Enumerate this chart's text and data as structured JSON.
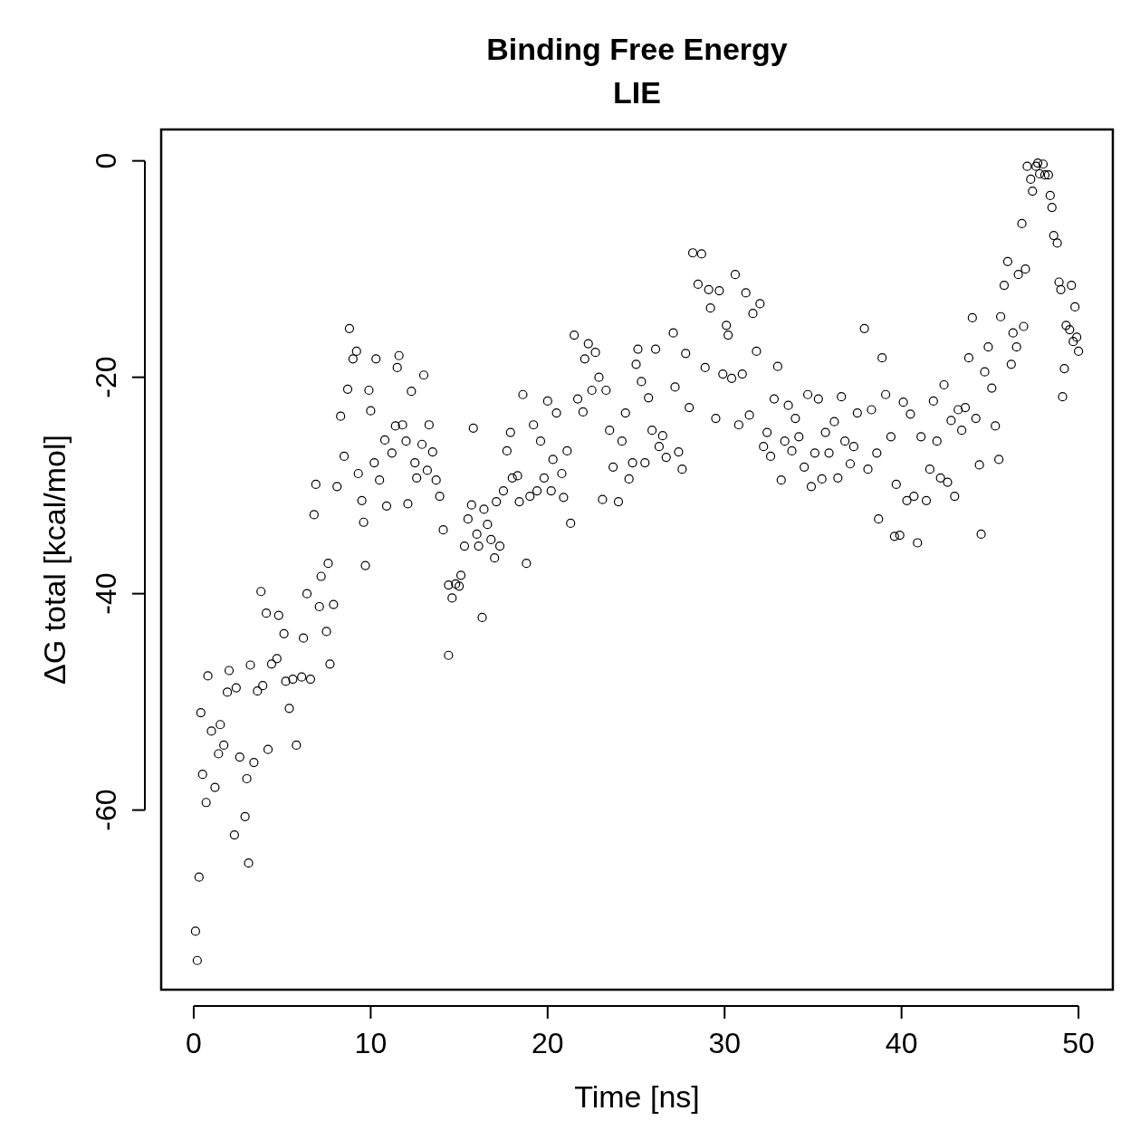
{
  "chart_data": {
    "type": "scatter",
    "title": "Binding Free Energy",
    "subtitle": "LIE",
    "xlabel": "Time [ns]",
    "ylabel": "ΔG total [kcal/mol]",
    "color": "#000000",
    "marker": "circle",
    "xlim": [
      -1.84,
      51.94
    ],
    "ylim": [
      -76.6,
      2.9
    ],
    "xticks": [
      0,
      10,
      20,
      30,
      40,
      50
    ],
    "yticks": [
      0,
      -20,
      -40,
      -60
    ],
    "x": [
      0.1,
      0.2,
      0.3,
      0.4,
      0.5,
      0.7,
      0.8,
      1.0,
      1.2,
      1.4,
      1.5,
      1.7,
      1.9,
      2.0,
      2.3,
      2.4,
      2.6,
      2.9,
      3.0,
      3.1,
      3.2,
      3.4,
      3.6,
      3.8,
      3.9,
      4.1,
      4.2,
      4.4,
      4.7,
      4.8,
      5.1,
      5.2,
      5.4,
      5.6,
      5.8,
      6.1,
      6.2,
      6.4,
      6.6,
      6.8,
      6.9,
      7.1,
      7.2,
      7.5,
      7.6,
      7.7,
      7.9,
      8.1,
      8.3,
      8.5,
      8.7,
      8.8,
      9.0,
      9.2,
      9.3,
      9.5,
      9.6,
      9.7,
      9.9,
      10.0,
      10.2,
      10.3,
      10.5,
      10.8,
      10.9,
      11.2,
      11.4,
      11.5,
      11.6,
      11.8,
      12.0,
      12.1,
      12.3,
      12.5,
      12.6,
      12.9,
      13.0,
      13.2,
      13.3,
      13.5,
      13.7,
      13.9,
      14.1,
      14.4,
      14.4,
      14.6,
      14.8,
      15.0,
      15.1,
      15.3,
      15.5,
      15.7,
      15.8,
      16.0,
      16.1,
      16.3,
      16.4,
      16.6,
      16.8,
      17.0,
      17.1,
      17.3,
      17.5,
      17.7,
      17.9,
      18.0,
      18.3,
      18.4,
      18.6,
      18.8,
      19.0,
      19.2,
      19.4,
      19.6,
      19.8,
      20.0,
      20.2,
      20.3,
      20.5,
      20.8,
      20.9,
      21.1,
      21.3,
      21.5,
      21.7,
      22.0,
      22.1,
      22.3,
      22.5,
      22.7,
      22.9,
      23.1,
      23.3,
      23.5,
      23.7,
      24.0,
      24.2,
      24.4,
      24.6,
      24.8,
      25.0,
      25.1,
      25.3,
      25.5,
      25.7,
      25.9,
      26.1,
      26.3,
      26.5,
      26.7,
      27.1,
      27.2,
      27.4,
      27.6,
      27.8,
      28.0,
      28.2,
      28.5,
      28.7,
      28.9,
      29.1,
      29.2,
      29.5,
      29.7,
      29.9,
      30.1,
      30.2,
      30.4,
      30.6,
      30.8,
      31.0,
      31.2,
      31.4,
      31.6,
      31.8,
      32.0,
      32.2,
      32.4,
      32.6,
      32.8,
      33.0,
      33.2,
      33.4,
      33.6,
      33.8,
      34.0,
      34.2,
      34.5,
      34.7,
      34.9,
      35.1,
      35.3,
      35.5,
      35.7,
      35.9,
      36.2,
      36.4,
      36.6,
      36.8,
      37.1,
      37.3,
      37.5,
      37.9,
      38.1,
      38.3,
      38.6,
      38.7,
      38.9,
      39.1,
      39.4,
      39.6,
      39.7,
      39.9,
      40.1,
      40.3,
      40.5,
      40.7,
      40.9,
      41.1,
      41.4,
      41.6,
      41.8,
      42.0,
      42.2,
      42.4,
      42.6,
      42.8,
      43.0,
      43.2,
      43.4,
      43.6,
      43.8,
      44.0,
      44.2,
      44.4,
      44.5,
      44.7,
      44.9,
      45.1,
      45.3,
      45.5,
      45.6,
      45.8,
      46.0,
      46.2,
      46.3,
      46.5,
      46.6,
      46.8,
      46.9,
      47.0,
      47.1,
      47.3,
      47.4,
      47.6,
      47.7,
      47.8,
      48.0,
      48.1,
      48.3,
      48.4,
      48.5,
      48.6,
      48.8,
      48.9,
      49.0,
      49.1,
      49.2,
      49.3,
      49.5,
      49.6,
      49.7,
      49.8,
      49.9,
      50.0
    ],
    "values": [
      -71.2,
      -73.9,
      -66.2,
      -51.0,
      -56.7,
      -59.3,
      -47.6,
      -52.7,
      -57.9,
      -54.8,
      -52.1,
      -54.0,
      -49.1,
      -47.1,
      -62.3,
      -48.7,
      -55.1,
      -60.6,
      -57.1,
      -64.9,
      -46.6,
      -55.6,
      -49.0,
      -39.8,
      -48.5,
      -41.8,
      -54.4,
      -46.5,
      -46.0,
      -42.0,
      -43.7,
      -48.1,
      -50.6,
      -47.9,
      -54.0,
      -47.7,
      -44.1,
      -40.0,
      -47.9,
      -32.7,
      -29.9,
      -41.2,
      -38.4,
      -43.5,
      -37.2,
      -46.5,
      -41.0,
      -30.1,
      -23.6,
      -27.3,
      -21.1,
      -15.5,
      -18.3,
      -17.6,
      -28.9,
      -31.4,
      -33.4,
      -37.4,
      -21.2,
      -23.1,
      -27.9,
      -18.3,
      -29.5,
      -25.8,
      -31.9,
      -27.0,
      -24.5,
      -19.1,
      -18.0,
      -24.4,
      -25.9,
      -31.7,
      -21.3,
      -27.9,
      -29.3,
      -26.2,
      -19.8,
      -28.6,
      -24.4,
      -26.9,
      -29.5,
      -31.0,
      -34.1,
      -45.7,
      -39.2,
      -40.4,
      -39.1,
      -39.3,
      -38.3,
      -35.6,
      -33.1,
      -31.8,
      -24.7,
      -34.5,
      -35.6,
      -42.2,
      -32.2,
      -33.6,
      -35.0,
      -36.7,
      -31.5,
      -35.6,
      -30.5,
      -26.8,
      -25.1,
      -29.3,
      -29.1,
      -31.5,
      -21.6,
      -37.2,
      -31.0,
      -24.4,
      -30.5,
      -25.9,
      -29.3,
      -22.2,
      -30.5,
      -27.6,
      -23.3,
      -28.9,
      -31.1,
      -26.8,
      -33.5,
      -16.1,
      -22.0,
      -23.2,
      -18.3,
      -16.9,
      -21.2,
      -17.7,
      -20.0,
      -31.3,
      -21.2,
      -24.9,
      -28.3,
      -31.5,
      -25.9,
      -23.3,
      -29.4,
      -27.9,
      -18.8,
      -17.4,
      -20.4,
      -27.9,
      -21.9,
      -24.9,
      -17.4,
      -26.4,
      -25.4,
      -27.4,
      -15.9,
      -20.9,
      -26.9,
      -28.5,
      -17.8,
      -22.8,
      -8.5,
      -11.4,
      -8.6,
      -19.1,
      -11.9,
      -13.6,
      -23.8,
      -12.0,
      -19.7,
      -15.2,
      -16.1,
      -20.1,
      -10.5,
      -24.4,
      -19.7,
      -12.2,
      -23.5,
      -14.1,
      -17.6,
      -13.2,
      -26.4,
      -25.1,
      -27.3,
      -22.0,
      -19.0,
      -29.5,
      -25.9,
      -22.6,
      -26.8,
      -23.8,
      -25.5,
      -28.3,
      -21.6,
      -30.1,
      -27.0,
      -22.0,
      -29.4,
      -25.1,
      -27.0,
      -24.1,
      -29.3,
      -21.8,
      -25.9,
      -28.0,
      -26.4,
      -23.3,
      -15.5,
      -28.5,
      -23.0,
      -27.0,
      -33.1,
      -18.2,
      -21.6,
      -25.5,
      -34.7,
      -29.9,
      -34.6,
      -22.3,
      -31.4,
      -23.4,
      -31.0,
      -35.3,
      -25.5,
      -31.4,
      -28.5,
      -22.2,
      -25.9,
      -29.3,
      -20.7,
      -29.7,
      -24.0,
      -31.0,
      -23.0,
      -24.9,
      -22.8,
      -18.2,
      -14.5,
      -23.8,
      -28.1,
      -34.5,
      -19.5,
      -17.2,
      -21.0,
      -24.5,
      -27.6,
      -14.4,
      -11.5,
      -9.3,
      -18.8,
      -15.9,
      -17.2,
      -10.5,
      -5.8,
      -15.3,
      -10.0,
      -0.5,
      -1.7,
      -2.8,
      -0.5,
      -0.2,
      -1.2,
      -0.3,
      -1.3,
      -1.3,
      -3.2,
      -4.3,
      -6.9,
      -7.6,
      -11.2,
      -11.9,
      -21.8,
      -19.2,
      -15.2,
      -15.6,
      -11.5,
      -16.7,
      -13.5,
      -16.3,
      -17.6
    ]
  }
}
